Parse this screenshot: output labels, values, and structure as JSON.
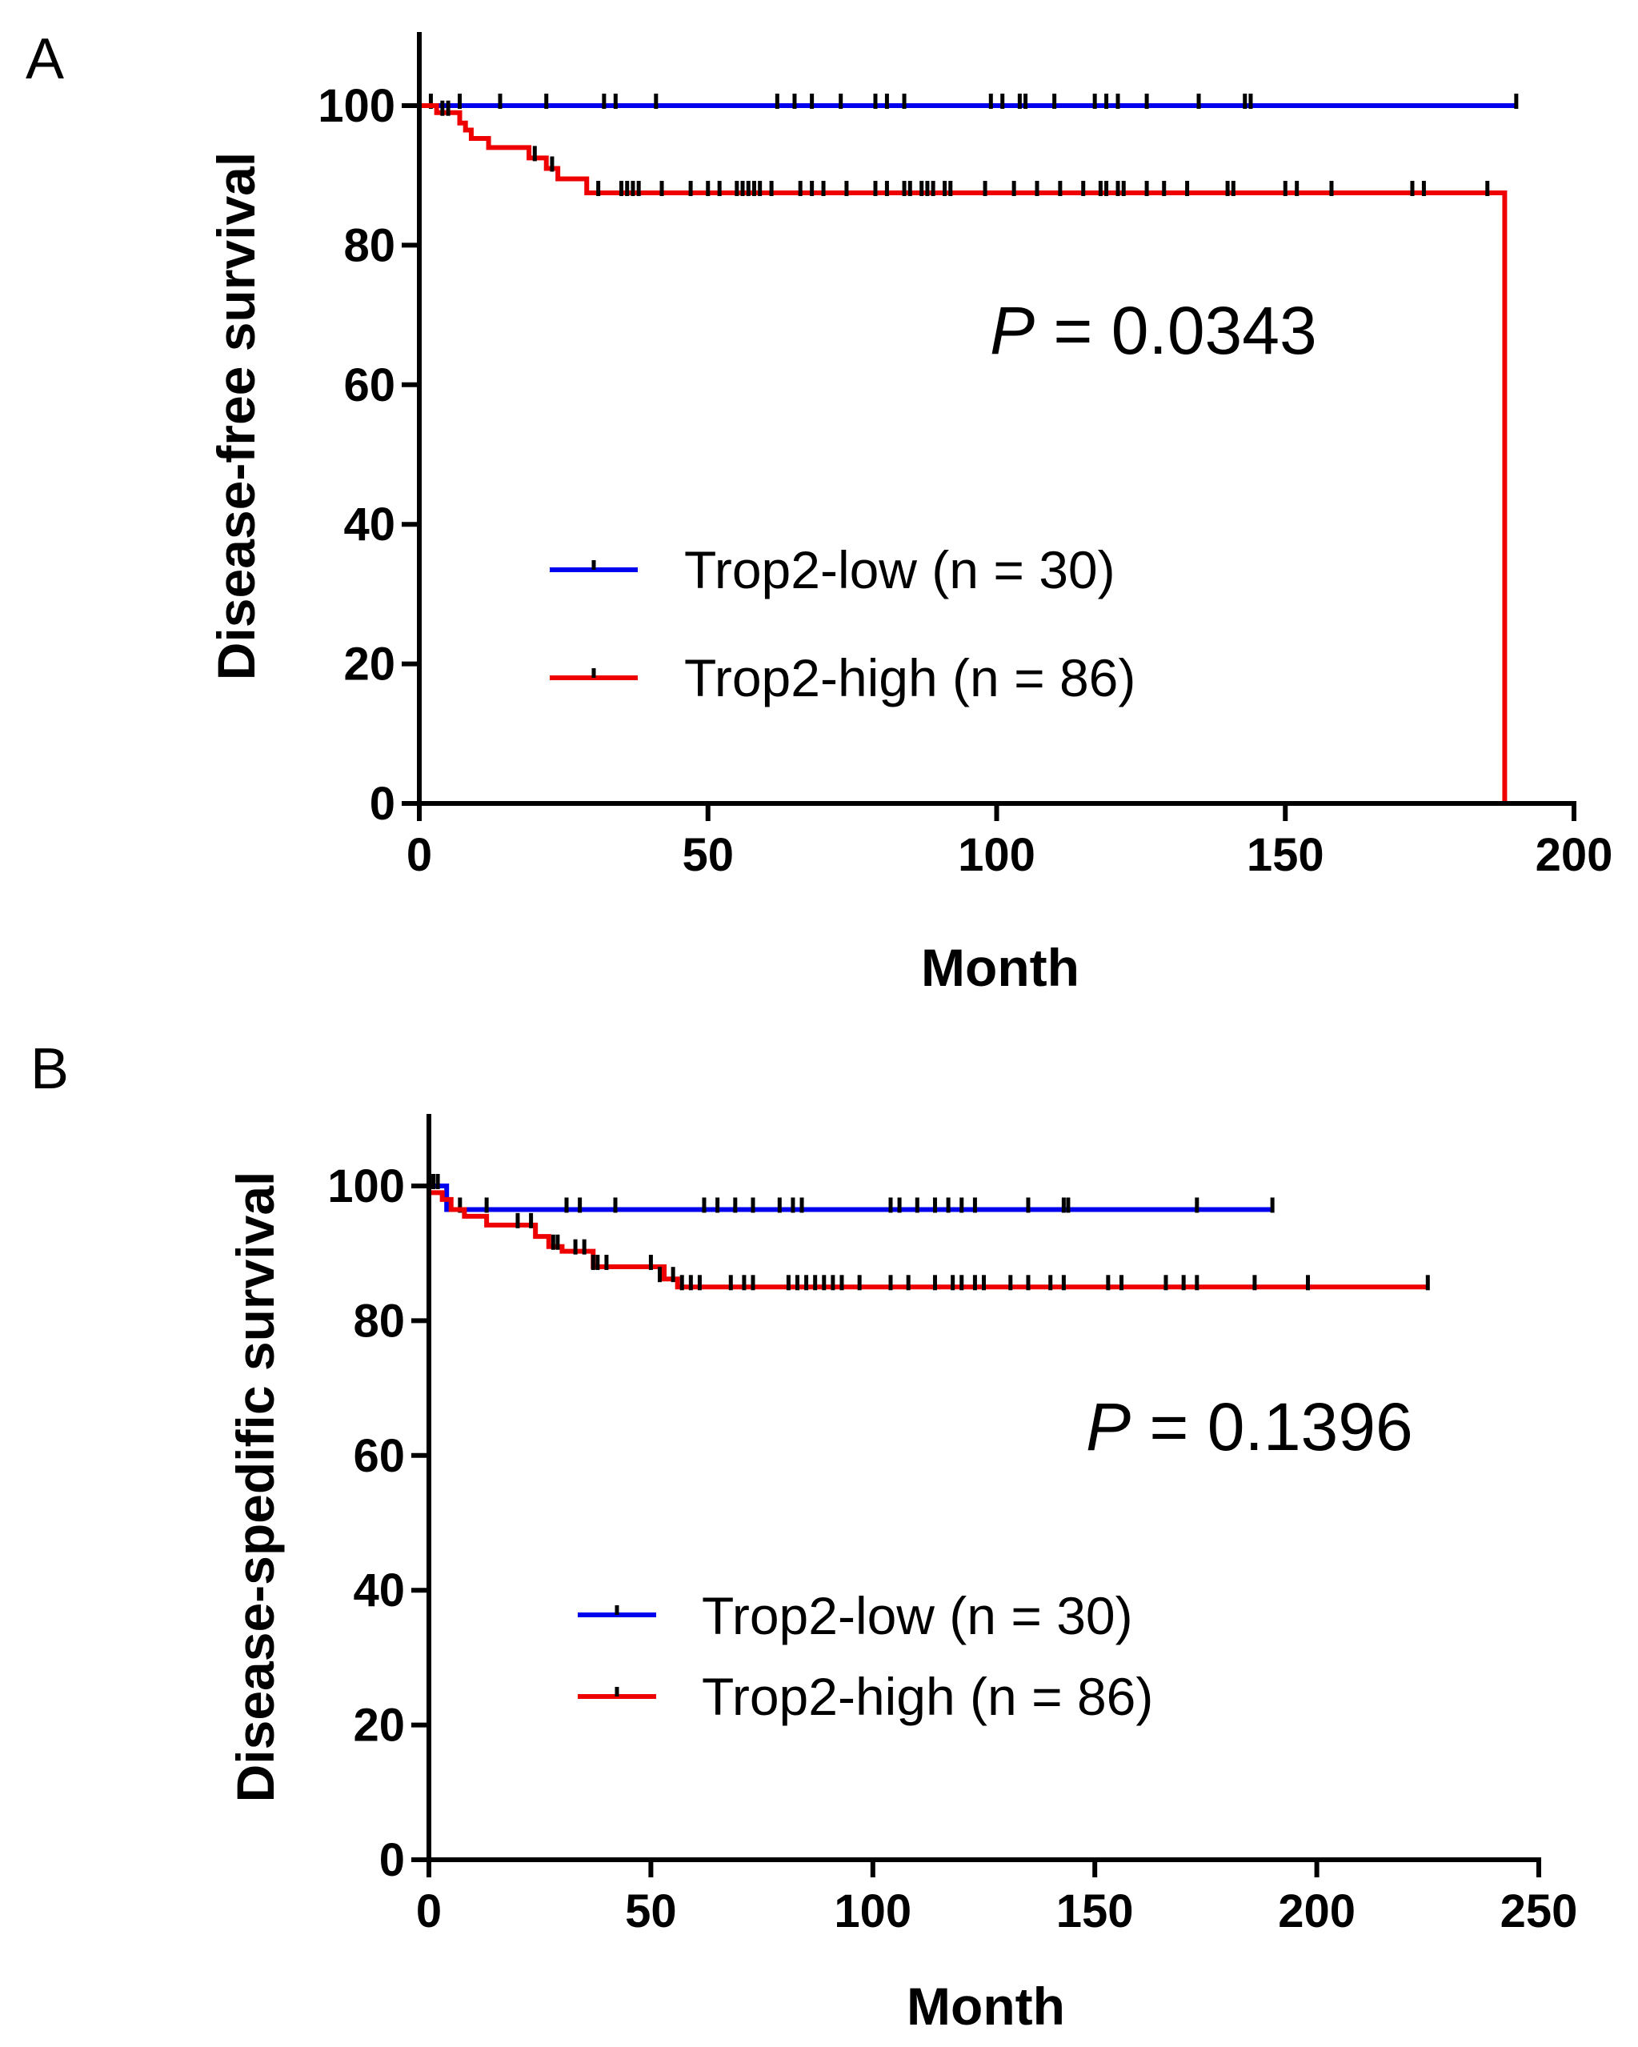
{
  "chart_data": [
    {
      "type": "line",
      "subtype": "kaplan-meier",
      "panel_label": "A",
      "title": "",
      "xlabel": "Month",
      "ylabel": "Disease-free survival",
      "xlim": [
        0,
        200
      ],
      "ylim": [
        0,
        110
      ],
      "xticks": [
        0,
        50,
        100,
        150,
        200
      ],
      "yticks": [
        0,
        20,
        40,
        60,
        80,
        100
      ],
      "annotation": {
        "p_italic": "P",
        "p_rest": " = 0.0343"
      },
      "legend": {
        "position": "center-left"
      },
      "series": [
        {
          "name": "Trop2-low",
          "legend_label": "Trop2-low (n = 30)",
          "color": "#0000ee",
          "x": [
            0,
            190
          ],
          "y": [
            100,
            100
          ],
          "censored": [
            {
              "x": 2,
              "y": 100
            },
            {
              "x": 7,
              "y": 100
            },
            {
              "x": 14,
              "y": 100
            },
            {
              "x": 22,
              "y": 100
            },
            {
              "x": 32,
              "y": 100
            },
            {
              "x": 34,
              "y": 100
            },
            {
              "x": 41,
              "y": 100
            },
            {
              "x": 62,
              "y": 100
            },
            {
              "x": 65,
              "y": 100
            },
            {
              "x": 68,
              "y": 100
            },
            {
              "x": 73,
              "y": 100
            },
            {
              "x": 79,
              "y": 100
            },
            {
              "x": 81,
              "y": 100
            },
            {
              "x": 84,
              "y": 100
            },
            {
              "x": 99,
              "y": 100
            },
            {
              "x": 101,
              "y": 100
            },
            {
              "x": 104,
              "y": 100
            },
            {
              "x": 105,
              "y": 100
            },
            {
              "x": 110,
              "y": 100
            },
            {
              "x": 117,
              "y": 100
            },
            {
              "x": 119,
              "y": 100
            },
            {
              "x": 121,
              "y": 100
            },
            {
              "x": 126,
              "y": 100
            },
            {
              "x": 135,
              "y": 100
            },
            {
              "x": 143,
              "y": 100
            },
            {
              "x": 144,
              "y": 100
            },
            {
              "x": 190,
              "y": 100
            }
          ]
        },
        {
          "name": "Trop2-high",
          "legend_label": "Trop2-high (n = 86)",
          "color": "#ee0000",
          "x": [
            0,
            3,
            6,
            7,
            8,
            9,
            12,
            18,
            19,
            22,
            24,
            29,
            188,
            188
          ],
          "y": [
            100,
            99,
            99,
            97.5,
            96.5,
            95.3,
            94,
            94,
            92.5,
            91,
            89.5,
            87.5,
            87.5,
            0
          ],
          "censored": [
            {
              "x": 4,
              "y": 99
            },
            {
              "x": 5,
              "y": 99
            },
            {
              "x": 20,
              "y": 92.5
            },
            {
              "x": 23,
              "y": 91
            },
            {
              "x": 31,
              "y": 87.5
            },
            {
              "x": 35,
              "y": 87.5
            },
            {
              "x": 36,
              "y": 87.5
            },
            {
              "x": 37,
              "y": 87.5
            },
            {
              "x": 38,
              "y": 87.5
            },
            {
              "x": 42,
              "y": 87.5
            },
            {
              "x": 47,
              "y": 87.5
            },
            {
              "x": 50,
              "y": 87.5
            },
            {
              "x": 52,
              "y": 87.5
            },
            {
              "x": 55,
              "y": 87.5
            },
            {
              "x": 56,
              "y": 87.5
            },
            {
              "x": 57,
              "y": 87.5
            },
            {
              "x": 58,
              "y": 87.5
            },
            {
              "x": 59,
              "y": 87.5
            },
            {
              "x": 61,
              "y": 87.5
            },
            {
              "x": 66,
              "y": 87.5
            },
            {
              "x": 68,
              "y": 87.5
            },
            {
              "x": 70,
              "y": 87.5
            },
            {
              "x": 74,
              "y": 87.5
            },
            {
              "x": 79,
              "y": 87.5
            },
            {
              "x": 81,
              "y": 87.5
            },
            {
              "x": 84,
              "y": 87.5
            },
            {
              "x": 85,
              "y": 87.5
            },
            {
              "x": 87,
              "y": 87.5
            },
            {
              "x": 88,
              "y": 87.5
            },
            {
              "x": 89,
              "y": 87.5
            },
            {
              "x": 91,
              "y": 87.5
            },
            {
              "x": 92,
              "y": 87.5
            },
            {
              "x": 98,
              "y": 87.5
            },
            {
              "x": 103,
              "y": 87.5
            },
            {
              "x": 107,
              "y": 87.5
            },
            {
              "x": 111,
              "y": 87.5
            },
            {
              "x": 115,
              "y": 87.5
            },
            {
              "x": 118,
              "y": 87.5
            },
            {
              "x": 119,
              "y": 87.5
            },
            {
              "x": 121,
              "y": 87.5
            },
            {
              "x": 122,
              "y": 87.5
            },
            {
              "x": 126,
              "y": 87.5
            },
            {
              "x": 129,
              "y": 87.5
            },
            {
              "x": 133,
              "y": 87.5
            },
            {
              "x": 140,
              "y": 87.5
            },
            {
              "x": 141,
              "y": 87.5
            },
            {
              "x": 150,
              "y": 87.5
            },
            {
              "x": 152,
              "y": 87.5
            },
            {
              "x": 158,
              "y": 87.5
            },
            {
              "x": 172,
              "y": 87.5
            },
            {
              "x": 174,
              "y": 87.5
            },
            {
              "x": 185,
              "y": 87.5
            }
          ]
        }
      ]
    },
    {
      "type": "line",
      "subtype": "kaplan-meier",
      "panel_label": "B",
      "title": "",
      "xlabel": "Month",
      "ylabel": "Disease-spedific survival",
      "xlim": [
        0,
        250
      ],
      "ylim": [
        0,
        110
      ],
      "xticks": [
        0,
        50,
        100,
        150,
        200,
        250
      ],
      "yticks": [
        0,
        20,
        40,
        60,
        80,
        100
      ],
      "annotation": {
        "p_italic": "P",
        "p_rest": " = 0.1396"
      },
      "legend": {
        "position": "center-left"
      },
      "series": [
        {
          "name": "Trop2-low",
          "legend_label": "Trop2-low (n = 30)",
          "color": "#0000ee",
          "x": [
            0,
            4,
            4,
            190
          ],
          "y": [
            100,
            100,
            96.5,
            96.5
          ],
          "censored": [
            {
              "x": 1,
              "y": 100
            },
            {
              "x": 2,
              "y": 100
            },
            {
              "x": 7,
              "y": 96.5
            },
            {
              "x": 13,
              "y": 96.5
            },
            {
              "x": 31,
              "y": 96.5
            },
            {
              "x": 34,
              "y": 96.5
            },
            {
              "x": 42,
              "y": 96.5
            },
            {
              "x": 62,
              "y": 96.5
            },
            {
              "x": 65,
              "y": 96.5
            },
            {
              "x": 69,
              "y": 96.5
            },
            {
              "x": 73,
              "y": 96.5
            },
            {
              "x": 79,
              "y": 96.5
            },
            {
              "x": 82,
              "y": 96.5
            },
            {
              "x": 84,
              "y": 96.5
            },
            {
              "x": 104,
              "y": 96.5
            },
            {
              "x": 106,
              "y": 96.5
            },
            {
              "x": 110,
              "y": 96.5
            },
            {
              "x": 114,
              "y": 96.5
            },
            {
              "x": 117,
              "y": 96.5
            },
            {
              "x": 120,
              "y": 96.5
            },
            {
              "x": 123,
              "y": 96.5
            },
            {
              "x": 135,
              "y": 96.5
            },
            {
              "x": 143,
              "y": 96.5
            },
            {
              "x": 144,
              "y": 96.5
            },
            {
              "x": 173,
              "y": 96.5
            },
            {
              "x": 190,
              "y": 96.5
            }
          ]
        },
        {
          "name": "Trop2-high",
          "legend_label": "Trop2-high (n = 86)",
          "color": "#ee0000",
          "x": [
            0,
            3,
            5,
            8,
            13,
            24,
            27,
            30,
            37,
            53,
            56,
            225
          ],
          "y": [
            99,
            98,
            96.5,
            95.5,
            94.2,
            92.5,
            91,
            90.3,
            88,
            86.2,
            85,
            85
          ],
          "censored": [
            {
              "x": 20,
              "y": 94.2
            },
            {
              "x": 23,
              "y": 94.2
            },
            {
              "x": 28,
              "y": 91
            },
            {
              "x": 29,
              "y": 91
            },
            {
              "x": 33,
              "y": 90.3
            },
            {
              "x": 35,
              "y": 90.3
            },
            {
              "x": 37,
              "y": 88
            },
            {
              "x": 38,
              "y": 88
            },
            {
              "x": 40,
              "y": 88
            },
            {
              "x": 50,
              "y": 88
            },
            {
              "x": 52,
              "y": 86.2
            },
            {
              "x": 55,
              "y": 86.2
            },
            {
              "x": 57,
              "y": 85
            },
            {
              "x": 59,
              "y": 85
            },
            {
              "x": 61,
              "y": 85
            },
            {
              "x": 68,
              "y": 85
            },
            {
              "x": 71,
              "y": 85
            },
            {
              "x": 73,
              "y": 85
            },
            {
              "x": 81,
              "y": 85
            },
            {
              "x": 83,
              "y": 85
            },
            {
              "x": 85,
              "y": 85
            },
            {
              "x": 87,
              "y": 85
            },
            {
              "x": 89,
              "y": 85
            },
            {
              "x": 91,
              "y": 85
            },
            {
              "x": 93,
              "y": 85
            },
            {
              "x": 97,
              "y": 85
            },
            {
              "x": 104,
              "y": 85
            },
            {
              "x": 108,
              "y": 85
            },
            {
              "x": 114,
              "y": 85
            },
            {
              "x": 118,
              "y": 85
            },
            {
              "x": 120,
              "y": 85
            },
            {
              "x": 123,
              "y": 85
            },
            {
              "x": 125,
              "y": 85
            },
            {
              "x": 131,
              "y": 85
            },
            {
              "x": 135,
              "y": 85
            },
            {
              "x": 140,
              "y": 85
            },
            {
              "x": 143,
              "y": 85
            },
            {
              "x": 153,
              "y": 85
            },
            {
              "x": 156,
              "y": 85
            },
            {
              "x": 166,
              "y": 85
            },
            {
              "x": 170,
              "y": 85
            },
            {
              "x": 173,
              "y": 85
            },
            {
              "x": 186,
              "y": 85
            },
            {
              "x": 198,
              "y": 85
            },
            {
              "x": 225,
              "y": 85
            }
          ]
        }
      ]
    }
  ]
}
